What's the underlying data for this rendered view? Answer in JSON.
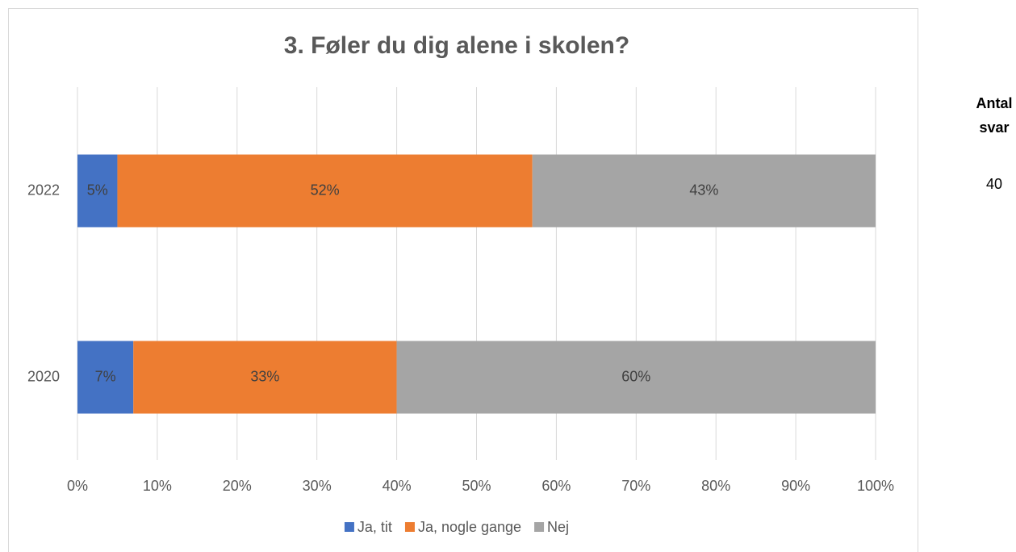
{
  "chart_data": {
    "type": "stacked_barh",
    "title": "3. Føler du dig alene i skolen?",
    "categories": [
      "2022",
      "2020"
    ],
    "series": [
      {
        "name": "Ja, tit",
        "color": "#4472c4",
        "values": [
          5,
          7
        ],
        "value_labels": [
          "5%",
          "7%"
        ]
      },
      {
        "name": "Ja, nogle gange",
        "color": "#ed7d31",
        "values": [
          52,
          33
        ],
        "value_labels": [
          "52%",
          "33%"
        ]
      },
      {
        "name": "Nej",
        "color": "#a5a5a5",
        "values": [
          43,
          60
        ],
        "value_labels": [
          "43%",
          "60%"
        ]
      }
    ],
    "xlim": [
      0,
      100
    ],
    "xticks": [
      {
        "value": 0,
        "label": "0%"
      },
      {
        "value": 10,
        "label": "10%"
      },
      {
        "value": 20,
        "label": "20%"
      },
      {
        "value": 30,
        "label": "30%"
      },
      {
        "value": 40,
        "label": "40%"
      },
      {
        "value": 50,
        "label": "50%"
      },
      {
        "value": 60,
        "label": "60%"
      },
      {
        "value": 70,
        "label": "70%"
      },
      {
        "value": 80,
        "label": "80%"
      },
      {
        "value": 90,
        "label": "90%"
      },
      {
        "value": 100,
        "label": "100%"
      }
    ],
    "grid": true,
    "legend": "bottom",
    "annotations": [
      {
        "text": "Antal svar"
      },
      {
        "text": "40"
      }
    ]
  }
}
